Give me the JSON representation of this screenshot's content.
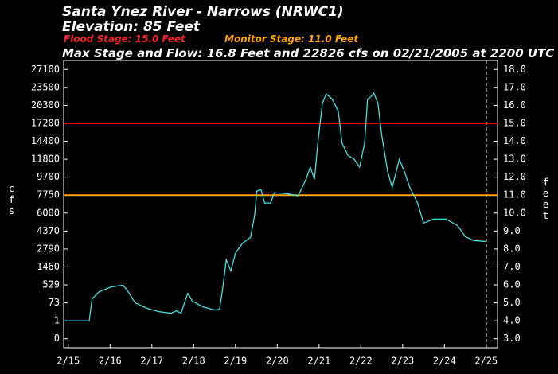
{
  "chart_data": {
    "type": "line",
    "title": "Santa Ynez River - Narrows (NRWC1)",
    "subtitle": "Elevation: 85 Feet",
    "flood_stage_text": "Flood Stage: 15.0 Feet",
    "monitor_stage_text": "Monitor Stage: 11.0 Feet",
    "max_text": "Max Stage and Flow: 16.8 Feet and 22826 cfs on 02/21/2005 at 2200 UTC",
    "ylabel": "cfs",
    "y2label": "feet",
    "yscale": "rating",
    "yticks": [
      0,
      1,
      73,
      529,
      1460,
      2790,
      4370,
      6000,
      7750,
      9700,
      11800,
      14400,
      17200,
      20300,
      23500,
      27100
    ],
    "y2lim": [
      2.5,
      18.5
    ],
    "y2ticks": [
      {
        "value": 3,
        "label": "3.0"
      },
      {
        "value": 4,
        "label": "4.0"
      },
      {
        "value": 5,
        "label": "5.0"
      },
      {
        "value": 6,
        "label": "6.0"
      },
      {
        "value": 7,
        "label": "7.0"
      },
      {
        "value": 8,
        "label": "8.0"
      },
      {
        "value": 9,
        "label": "9.0"
      },
      {
        "value": 10,
        "label": "10.0"
      },
      {
        "value": 11,
        "label": "11.0"
      },
      {
        "value": 12,
        "label": "12.0"
      },
      {
        "value": 13,
        "label": "13.0"
      },
      {
        "value": 14,
        "label": "14.0"
      },
      {
        "value": 15,
        "label": "15.0"
      },
      {
        "value": 16,
        "label": "16.0"
      },
      {
        "value": 17,
        "label": "17.0"
      },
      {
        "value": 18,
        "label": "18.0"
      }
    ],
    "xlim": [
      14.89,
      25.27
    ],
    "xticks": [
      {
        "value": 15,
        "label": "2/15"
      },
      {
        "value": 16,
        "label": "2/16"
      },
      {
        "value": 17,
        "label": "2/17"
      },
      {
        "value": 18,
        "label": "2/18"
      },
      {
        "value": 19,
        "label": "2/19"
      },
      {
        "value": 20,
        "label": "2/20"
      },
      {
        "value": 21,
        "label": "2/21"
      },
      {
        "value": 22,
        "label": "2/22"
      },
      {
        "value": 23,
        "label": "2/23"
      },
      {
        "value": 24,
        "label": "2/24"
      },
      {
        "value": 25,
        "label": "2/25"
      }
    ],
    "hlines": [
      {
        "value": 15.0,
        "color": "#ff0000"
      },
      {
        "value": 11.0,
        "color": "#ffa500"
      }
    ],
    "x": [
      14.89,
      15.5,
      15.57,
      15.74,
      16.03,
      16.31,
      16.41,
      16.6,
      16.89,
      17.17,
      17.46,
      17.59,
      17.7,
      17.78,
      17.86,
      17.97,
      18.22,
      18.5,
      18.62,
      18.7,
      18.78,
      18.89,
      19.0,
      19.17,
      19.36,
      19.46,
      19.51,
      19.61,
      19.7,
      19.84,
      19.93,
      20.22,
      20.5,
      20.69,
      20.79,
      20.89,
      20.98,
      21.08,
      21.17,
      21.32,
      21.46,
      21.55,
      21.69,
      21.84,
      21.97,
      22.09,
      22.16,
      22.24,
      22.31,
      22.41,
      22.5,
      22.64,
      22.75,
      22.85,
      22.92,
      23.04,
      23.17,
      23.36,
      23.5,
      23.74,
      24.03,
      24.31,
      24.5,
      24.7,
      24.98
    ],
    "series": [
      {
        "color": "#40e0e0",
        "axis": "y2",
        "values": [
          4.0,
          4.0,
          5.22,
          5.62,
          5.89,
          5.98,
          5.71,
          5.0,
          4.69,
          4.51,
          4.42,
          4.56,
          4.42,
          5.0,
          5.53,
          5.09,
          4.78,
          4.6,
          4.64,
          5.89,
          7.4,
          6.78,
          7.76,
          8.33,
          8.64,
          9.89,
          11.22,
          11.31,
          10.56,
          10.56,
          11.13,
          11.09,
          10.96,
          11.89,
          12.56,
          11.89,
          14.11,
          16.11,
          16.64,
          16.33,
          15.67,
          13.89,
          13.22,
          13.0,
          12.56,
          13.89,
          16.33,
          16.47,
          16.69,
          16.11,
          14.33,
          12.33,
          11.44,
          12.33,
          13.0,
          12.33,
          11.44,
          10.56,
          9.44,
          9.67,
          9.67,
          9.31,
          8.69,
          8.47,
          8.42
        ]
      }
    ]
  }
}
